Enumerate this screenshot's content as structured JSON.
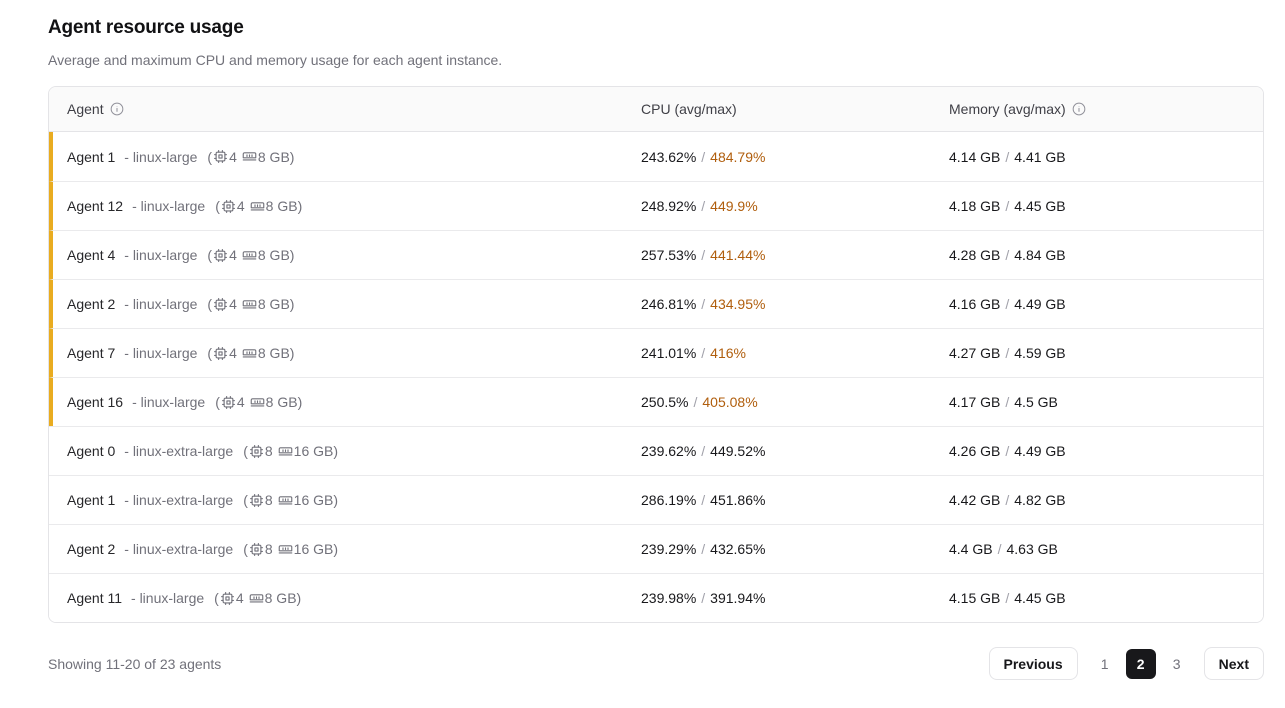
{
  "header": {
    "title": "Agent resource usage",
    "subtitle": "Average and maximum CPU and memory usage for each agent instance."
  },
  "strings": {
    "paren_open": "(",
    "paren_close": ")",
    "slash": "/"
  },
  "table": {
    "columns": {
      "agent": "Agent",
      "cpu": "CPU (avg/max)",
      "memory": "Memory (avg/max)"
    },
    "rows": [
      {
        "name": "Agent 1",
        "instance": "- linux-large",
        "cpu_count": "4",
        "ram": "8 GB",
        "cpu_avg": "243.62%",
        "cpu_max": "484.79%",
        "mem_avg": "4.14 GB",
        "mem_max": "4.41 GB",
        "flagged": true
      },
      {
        "name": "Agent 12",
        "instance": "- linux-large",
        "cpu_count": "4",
        "ram": "8 GB",
        "cpu_avg": "248.92%",
        "cpu_max": "449.9%",
        "mem_avg": "4.18 GB",
        "mem_max": "4.45 GB",
        "flagged": true
      },
      {
        "name": "Agent 4",
        "instance": "- linux-large",
        "cpu_count": "4",
        "ram": "8 GB",
        "cpu_avg": "257.53%",
        "cpu_max": "441.44%",
        "mem_avg": "4.28 GB",
        "mem_max": "4.84 GB",
        "flagged": true
      },
      {
        "name": "Agent 2",
        "instance": "- linux-large",
        "cpu_count": "4",
        "ram": "8 GB",
        "cpu_avg": "246.81%",
        "cpu_max": "434.95%",
        "mem_avg": "4.16 GB",
        "mem_max": "4.49 GB",
        "flagged": true
      },
      {
        "name": "Agent 7",
        "instance": "- linux-large",
        "cpu_count": "4",
        "ram": "8 GB",
        "cpu_avg": "241.01%",
        "cpu_max": "416%",
        "mem_avg": "4.27 GB",
        "mem_max": "4.59 GB",
        "flagged": true
      },
      {
        "name": "Agent 16",
        "instance": "- linux-large",
        "cpu_count": "4",
        "ram": "8 GB",
        "cpu_avg": "250.5%",
        "cpu_max": "405.08%",
        "mem_avg": "4.17 GB",
        "mem_max": "4.5 GB",
        "flagged": true
      },
      {
        "name": "Agent 0",
        "instance": "- linux-extra-large",
        "cpu_count": "8",
        "ram": "16 GB",
        "cpu_avg": "239.62%",
        "cpu_max": "449.52%",
        "mem_avg": "4.26 GB",
        "mem_max": "4.49 GB",
        "flagged": false
      },
      {
        "name": "Agent 1",
        "instance": "- linux-extra-large",
        "cpu_count": "8",
        "ram": "16 GB",
        "cpu_avg": "286.19%",
        "cpu_max": "451.86%",
        "mem_avg": "4.42 GB",
        "mem_max": "4.82 GB",
        "flagged": false
      },
      {
        "name": "Agent 2",
        "instance": "- linux-extra-large",
        "cpu_count": "8",
        "ram": "16 GB",
        "cpu_avg": "239.29%",
        "cpu_max": "432.65%",
        "mem_avg": "4.4 GB",
        "mem_max": "4.63 GB",
        "flagged": false
      },
      {
        "name": "Agent 11",
        "instance": "- linux-large",
        "cpu_count": "4",
        "ram": "8 GB",
        "cpu_avg": "239.98%",
        "cpu_max": "391.94%",
        "mem_avg": "4.15 GB",
        "mem_max": "4.45 GB",
        "flagged": false
      }
    ]
  },
  "footer": {
    "summary": "Showing 11-20 of 23 agents",
    "pagination": {
      "previous": "Previous",
      "pages": [
        "1",
        "2",
        "3"
      ],
      "active": "2",
      "next": "Next"
    }
  },
  "colors": {
    "flag_border": "#e9ac20",
    "flag_text": "#b05e0d",
    "page_active_bg": "#18181b",
    "page_active_fg": "#ffffff"
  }
}
